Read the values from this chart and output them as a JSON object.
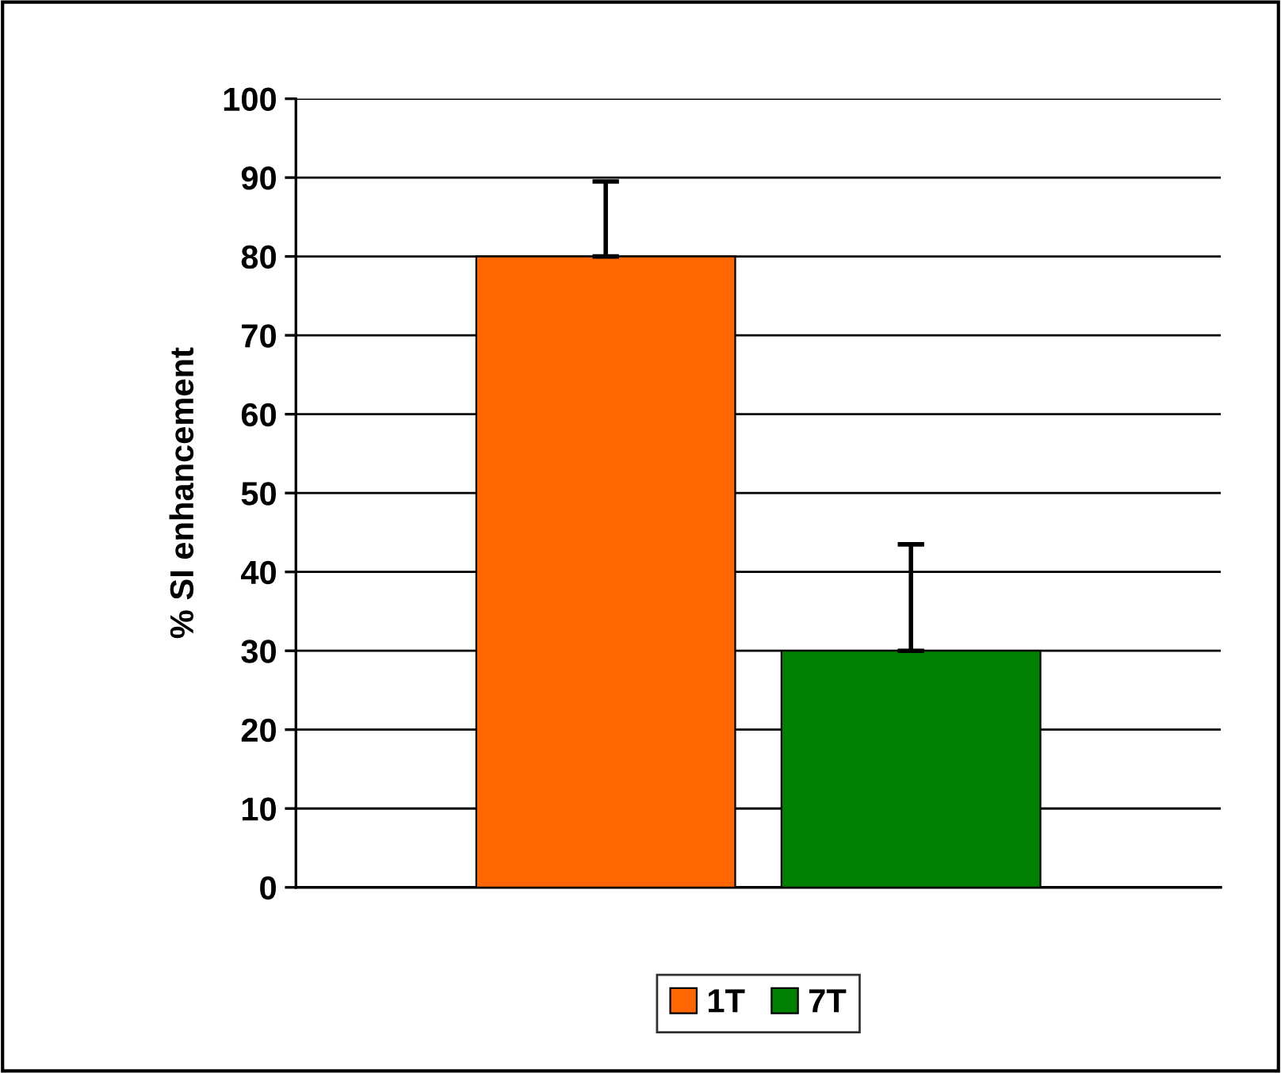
{
  "chart_data": {
    "type": "bar",
    "ylabel": "% SI enhancement",
    "categories": [
      null
    ],
    "series": [
      {
        "name": "1T",
        "color": "#ff6600",
        "values": [
          80
        ],
        "errors": [
          [
            80,
            89.5
          ]
        ]
      },
      {
        "name": "7T",
        "color": "#008000",
        "values": [
          30
        ],
        "errors": [
          [
            30,
            43.5
          ]
        ]
      }
    ],
    "ylim": [
      0,
      100
    ],
    "yticks": [
      0,
      10,
      20,
      30,
      40,
      50,
      60,
      70,
      80,
      90,
      100
    ],
    "grid": "y",
    "legend": "bottom"
  }
}
